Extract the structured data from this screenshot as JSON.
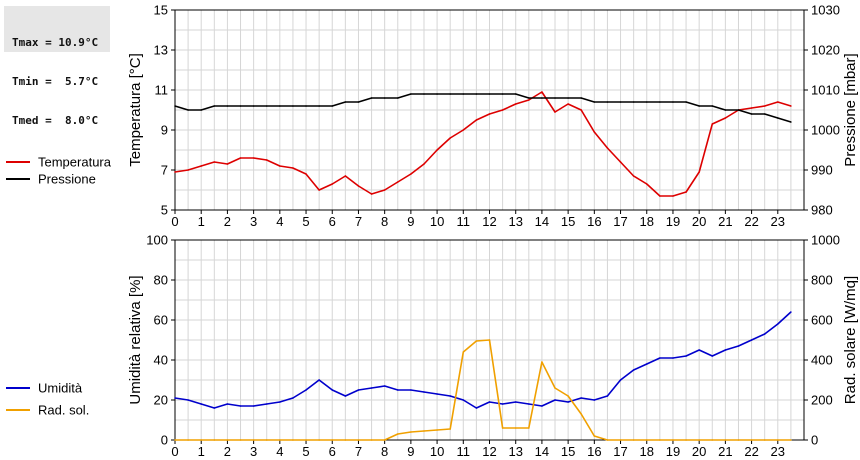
{
  "stats": {
    "tmax": "Tmax = 10.9°C",
    "tmin": "Tmin =  5.7°C",
    "tmed": "Tmed =  8.0°C"
  },
  "chart_data": [
    {
      "type": "line",
      "x_label": "",
      "x_ticks": [
        "0",
        "1",
        "2",
        "3",
        "4",
        "5",
        "6",
        "7",
        "8",
        "9",
        "10",
        "11",
        "12",
        "13",
        "14",
        "15",
        "16",
        "17",
        "18",
        "19",
        "20",
        "21",
        "22",
        "23"
      ],
      "xlim": [
        0,
        24
      ],
      "ylabel": "Temperatura [°C]",
      "ylim": [
        5,
        15
      ],
      "y_ticks": [
        5,
        7,
        9,
        11,
        13,
        15
      ],
      "y2label": "Pressione [mbar]",
      "y2lim": [
        980,
        1030
      ],
      "y2_ticks": [
        980,
        990,
        1000,
        1010,
        1020,
        1030
      ],
      "grid": true,
      "legend_position": "left",
      "series": [
        {
          "name": "Temperatura",
          "axis": "left",
          "color": "#dd0000",
          "x": [
            0,
            0.5,
            1,
            1.5,
            2,
            2.5,
            3,
            3.5,
            4,
            4.5,
            5,
            5.5,
            6,
            6.5,
            7,
            7.5,
            8,
            8.5,
            9,
            9.5,
            10,
            10.5,
            11,
            11.5,
            12,
            12.5,
            13,
            13.5,
            14,
            14.5,
            15,
            15.5,
            16,
            16.5,
            17,
            17.5,
            18,
            18.5,
            19,
            19.5,
            20,
            20.5,
            21,
            21.5,
            22,
            22.5,
            23,
            23.5
          ],
          "values": [
            6.9,
            7.0,
            7.2,
            7.4,
            7.3,
            7.6,
            7.6,
            7.5,
            7.2,
            7.1,
            6.8,
            6.0,
            6.3,
            6.7,
            6.2,
            5.8,
            6.0,
            6.4,
            6.8,
            7.3,
            8.0,
            8.6,
            9.0,
            9.5,
            9.8,
            10.0,
            10.3,
            10.5,
            10.9,
            9.9,
            10.3,
            10.0,
            8.9,
            8.1,
            7.4,
            6.7,
            6.3,
            5.7,
            5.7,
            5.9,
            6.9,
            9.3,
            9.6,
            10.0,
            10.1,
            10.2,
            10.4,
            10.2
          ]
        },
        {
          "name": "Pressione",
          "axis": "right",
          "color": "#000000",
          "x": [
            0,
            0.5,
            1,
            1.5,
            2,
            2.5,
            3,
            3.5,
            4,
            4.5,
            5,
            5.5,
            6,
            6.5,
            7,
            7.5,
            8,
            8.5,
            9,
            9.5,
            10,
            10.5,
            11,
            11.5,
            12,
            12.5,
            13,
            13.5,
            14,
            14.5,
            15,
            15.5,
            16,
            16.5,
            17,
            17.5,
            18,
            18.5,
            19,
            19.5,
            20,
            20.5,
            21,
            21.5,
            22,
            22.5,
            23,
            23.5
          ],
          "values": [
            1006,
            1005,
            1005,
            1006,
            1006,
            1006,
            1006,
            1006,
            1006,
            1006,
            1006,
            1006,
            1006,
            1007,
            1007,
            1008,
            1008,
            1008,
            1009,
            1009,
            1009,
            1009,
            1009,
            1009,
            1009,
            1009,
            1009,
            1008,
            1008,
            1008,
            1008,
            1008,
            1007,
            1007,
            1007,
            1007,
            1007,
            1007,
            1007,
            1007,
            1006,
            1006,
            1005,
            1005,
            1004,
            1004,
            1003,
            1002
          ]
        }
      ]
    },
    {
      "type": "line",
      "x_label": "",
      "x_ticks": [
        "0",
        "1",
        "2",
        "3",
        "4",
        "5",
        "6",
        "7",
        "8",
        "9",
        "10",
        "11",
        "12",
        "13",
        "14",
        "15",
        "16",
        "17",
        "18",
        "19",
        "20",
        "21",
        "22",
        "23"
      ],
      "xlim": [
        0,
        24
      ],
      "ylabel": "Umidità relativa [%]",
      "ylim": [
        0,
        100
      ],
      "y_ticks": [
        0,
        20,
        40,
        60,
        80,
        100
      ],
      "y2label": "Rad. solare [W/mq]",
      "y2lim": [
        0,
        1000
      ],
      "y2_ticks": [
        0,
        200,
        400,
        600,
        800,
        1000
      ],
      "grid": true,
      "legend_position": "left",
      "series": [
        {
          "name": "Umidità",
          "axis": "left",
          "color": "#0000cc",
          "x": [
            0,
            0.5,
            1,
            1.5,
            2,
            2.5,
            3,
            3.5,
            4,
            4.5,
            5,
            5.5,
            6,
            6.5,
            7,
            7.5,
            8,
            8.5,
            9,
            9.5,
            10,
            10.5,
            11,
            11.5,
            12,
            12.5,
            13,
            13.5,
            14,
            14.5,
            15,
            15.5,
            16,
            16.5,
            17,
            17.5,
            18,
            18.5,
            19,
            19.5,
            20,
            20.5,
            21,
            21.5,
            22,
            22.5,
            23,
            23.5
          ],
          "values": [
            21,
            20,
            18,
            16,
            18,
            17,
            17,
            18,
            19,
            21,
            25,
            30,
            25,
            22,
            25,
            26,
            27,
            25,
            25,
            24,
            23,
            22,
            20,
            16,
            19,
            18,
            19,
            18,
            17,
            20,
            19,
            21,
            20,
            22,
            30,
            35,
            38,
            41,
            41,
            42,
            45,
            42,
            45,
            47,
            50,
            53,
            58,
            64
          ]
        },
        {
          "name": "Rad. sol.",
          "axis": "right",
          "color": "#f0a000",
          "x": [
            0,
            0.5,
            1,
            1.5,
            2,
            2.5,
            3,
            3.5,
            4,
            4.5,
            5,
            5.5,
            6,
            6.5,
            7,
            7.5,
            8,
            8.5,
            9,
            9.5,
            10,
            10.5,
            11,
            11.5,
            12,
            12.5,
            13,
            13.5,
            14,
            14.5,
            15,
            15.5,
            16,
            16.5,
            17,
            17.5,
            18,
            18.5,
            19,
            19.5,
            20,
            20.5,
            21,
            21.5,
            22,
            22.5,
            23,
            23.5
          ],
          "values": [
            0,
            0,
            0,
            0,
            0,
            0,
            0,
            0,
            0,
            0,
            0,
            0,
            0,
            0,
            0,
            0,
            0,
            30,
            40,
            45,
            50,
            55,
            440,
            495,
            500,
            60,
            60,
            60,
            390,
            260,
            220,
            130,
            20,
            0,
            0,
            0,
            0,
            0,
            0,
            0,
            0,
            0,
            0,
            0,
            0,
            0,
            0,
            0
          ]
        }
      ]
    }
  ]
}
